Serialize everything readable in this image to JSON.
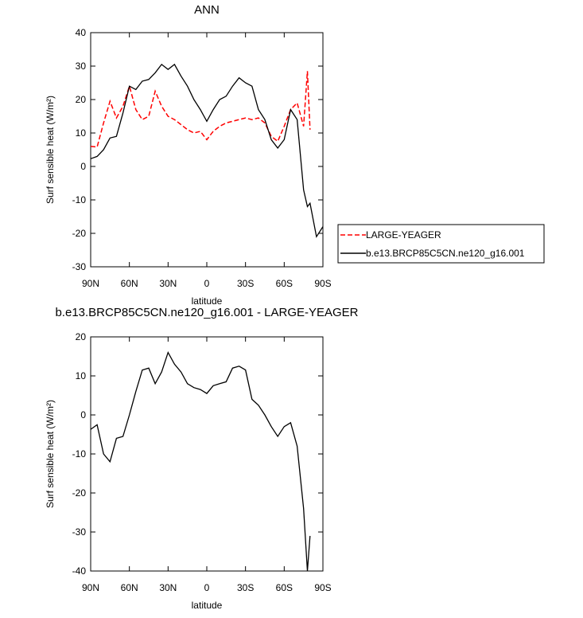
{
  "chart_data": [
    {
      "type": "line",
      "title": "ANN",
      "xlabel": "latitude",
      "ylabel": "Surf sensible heat (W/m²)",
      "x": [
        90,
        85,
        80,
        75,
        70,
        65,
        60,
        55,
        50,
        45,
        40,
        35,
        30,
        25,
        20,
        15,
        10,
        5,
        0,
        -5,
        -10,
        -15,
        -20,
        -25,
        -30,
        -35,
        -40,
        -45,
        -50,
        -55,
        -60,
        -65,
        -70,
        -75,
        -78,
        -80,
        -85,
        -90
      ],
      "xlim": [
        90,
        -90
      ],
      "xticks": [
        {
          "value": 90,
          "label": "90N"
        },
        {
          "value": 60,
          "label": "60N"
        },
        {
          "value": 30,
          "label": "30N"
        },
        0,
        {
          "value": -30,
          "label": "30S"
        },
        {
          "value": -60,
          "label": "60S"
        },
        {
          "value": -90,
          "label": "90S"
        }
      ],
      "ylim": [
        -30,
        40
      ],
      "yticks": [
        -30,
        -20,
        -10,
        0,
        10,
        20,
        30,
        40
      ],
      "series": [
        {
          "name": "LARGE-YEAGER",
          "color": "#ff0000",
          "dashed": true,
          "values": [
            6,
            5.8,
            13,
            19.5,
            14.5,
            18,
            24,
            17,
            14,
            15,
            22.5,
            18,
            15,
            14,
            12.5,
            11,
            10,
            10.5,
            8,
            10.5,
            12,
            13,
            13.5,
            14,
            14.5,
            14,
            14.5,
            13,
            9,
            7.5,
            12,
            17,
            19,
            12,
            28.5,
            11,
            null,
            null
          ]
        },
        {
          "name": "b.e13.BRCP85C5CN.ne120_g16.001",
          "color": "#000000",
          "dashed": false,
          "values": [
            2.3,
            3,
            5,
            8.5,
            9,
            16,
            24,
            23,
            25.5,
            26,
            28,
            30.5,
            29,
            30.5,
            27,
            24,
            20,
            17,
            13.5,
            17,
            20,
            21,
            24,
            26.5,
            25,
            24,
            17,
            14,
            8,
            5.5,
            8,
            17,
            14,
            -7,
            -12,
            -11,
            -21,
            -18
          ]
        }
      ]
    },
    {
      "type": "line",
      "title": "b.e13.BRCP85C5CN.ne120_g16.001 - LARGE-YEAGER",
      "xlabel": "latitude",
      "ylabel": "Surf sensible heat (W/m²)",
      "x": [
        90,
        85,
        80,
        75,
        70,
        65,
        60,
        55,
        50,
        45,
        40,
        35,
        30,
        25,
        20,
        15,
        10,
        5,
        0,
        -5,
        -10,
        -15,
        -20,
        -25,
        -30,
        -35,
        -40,
        -45,
        -50,
        -55,
        -60,
        -65,
        -70,
        -75,
        -78,
        -80,
        -85,
        -90
      ],
      "xlim": [
        90,
        -90
      ],
      "xticks": [
        {
          "value": 90,
          "label": "90N"
        },
        {
          "value": 60,
          "label": "60N"
        },
        {
          "value": 30,
          "label": "30N"
        },
        0,
        {
          "value": -30,
          "label": "30S"
        },
        {
          "value": -60,
          "label": "60S"
        },
        {
          "value": -90,
          "label": "90S"
        }
      ],
      "ylim": [
        -40,
        20
      ],
      "yticks": [
        -40,
        -30,
        -20,
        -10,
        0,
        10,
        20
      ],
      "series": [
        {
          "color": "#000000",
          "dashed": false,
          "values": [
            -3.7,
            -2.5,
            -10,
            -12,
            -6,
            -5.5,
            0,
            6,
            11.5,
            12,
            8,
            11,
            16,
            13,
            11,
            8,
            7,
            6.5,
            5.5,
            7.5,
            8,
            8.5,
            12,
            12.5,
            11.5,
            4,
            2.5,
            0,
            -3,
            -5.5,
            -3,
            -2,
            -8,
            -24,
            -40,
            -31,
            null,
            null
          ]
        }
      ]
    }
  ]
}
